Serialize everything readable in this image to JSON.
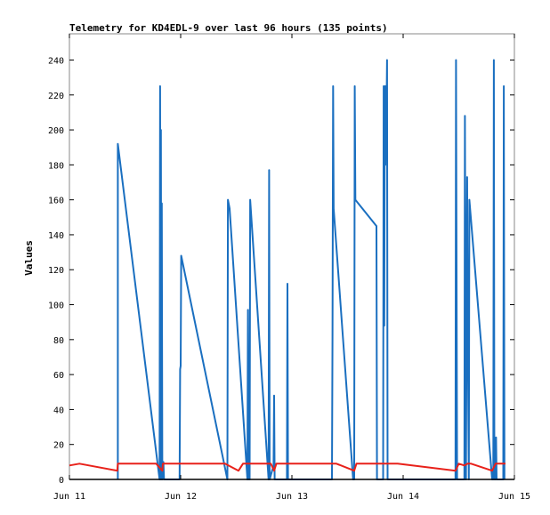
{
  "chart_data": {
    "type": "line",
    "title": "Telemetry for KD4EDL-9 over last 96 hours (135 points)",
    "xlabel": "",
    "ylabel": "Values",
    "ylim": [
      0,
      255
    ],
    "xlim": [
      "Jun 11",
      "Jun 15"
    ],
    "x_ticks": [
      "Jun 11",
      "Jun 12",
      "Jun 13",
      "Jun 14",
      "Jun 15"
    ],
    "y_ticks": [
      0,
      20,
      40,
      60,
      80,
      100,
      120,
      140,
      160,
      180,
      200,
      220,
      240
    ],
    "grid": false,
    "x_unit": "days since Jun 11 00:00",
    "series": [
      {
        "color": "#1a6fc0",
        "points": [
          [
            0.435,
            0
          ],
          [
            0.435,
            192
          ],
          [
            0.81,
            0
          ],
          [
            0.815,
            225
          ],
          [
            0.82,
            0
          ],
          [
            0.822,
            200
          ],
          [
            0.826,
            0
          ],
          [
            0.83,
            158
          ],
          [
            0.835,
            0
          ],
          [
            0.845,
            10
          ],
          [
            0.85,
            0
          ],
          [
            0.99,
            0
          ],
          [
            0.995,
            63
          ],
          [
            1.0,
            65
          ],
          [
            1.005,
            128
          ],
          [
            1.42,
            0
          ],
          [
            1.425,
            160
          ],
          [
            1.44,
            155
          ],
          [
            1.6,
            0
          ],
          [
            1.605,
            97
          ],
          [
            1.61,
            0
          ],
          [
            1.615,
            48
          ],
          [
            1.62,
            0
          ],
          [
            1.625,
            160
          ],
          [
            1.79,
            0
          ],
          [
            1.795,
            177
          ],
          [
            1.8,
            0
          ],
          [
            1.835,
            8
          ],
          [
            1.84,
            48
          ],
          [
            1.845,
            0
          ],
          [
            1.955,
            0
          ],
          [
            1.96,
            112
          ],
          [
            1.965,
            0
          ],
          [
            2.36,
            0
          ],
          [
            2.365,
            80
          ],
          [
            2.37,
            225
          ],
          [
            2.375,
            155
          ],
          [
            2.55,
            0
          ],
          [
            2.56,
            0
          ],
          [
            2.565,
            225
          ],
          [
            2.57,
            160
          ],
          [
            2.76,
            145
          ],
          [
            2.765,
            0
          ],
          [
            2.82,
            0
          ],
          [
            2.825,
            225
          ],
          [
            2.83,
            88
          ],
          [
            2.835,
            225
          ],
          [
            2.84,
            180
          ],
          [
            2.845,
            225
          ],
          [
            2.85,
            210
          ],
          [
            2.855,
            240
          ],
          [
            2.86,
            0
          ],
          [
            3.47,
            0
          ],
          [
            3.475,
            240
          ],
          [
            3.48,
            120
          ],
          [
            3.485,
            0
          ],
          [
            3.55,
            0
          ],
          [
            3.555,
            208
          ],
          [
            3.56,
            104
          ],
          [
            3.565,
            0
          ],
          [
            3.575,
            173
          ],
          [
            3.58,
            95
          ],
          [
            3.59,
            0
          ],
          [
            3.595,
            160
          ],
          [
            3.8,
            0
          ],
          [
            3.81,
            0
          ],
          [
            3.815,
            240
          ],
          [
            3.82,
            0
          ],
          [
            3.83,
            0
          ],
          [
            3.835,
            24
          ],
          [
            3.84,
            0
          ],
          [
            3.9,
            0
          ],
          [
            3.905,
            225
          ],
          [
            3.91,
            0
          ]
        ]
      },
      {
        "color": "#e8211a",
        "points": [
          [
            0.0,
            8
          ],
          [
            0.09,
            9
          ],
          [
            0.43,
            5
          ],
          [
            0.435,
            9
          ],
          [
            0.78,
            9
          ],
          [
            0.835,
            5
          ],
          [
            0.84,
            9
          ],
          [
            1.4,
            9
          ],
          [
            1.52,
            5
          ],
          [
            1.56,
            9
          ],
          [
            1.81,
            9
          ],
          [
            1.84,
            5
          ],
          [
            1.86,
            9
          ],
          [
            2.4,
            9
          ],
          [
            2.56,
            5
          ],
          [
            2.58,
            9
          ],
          [
            2.95,
            9
          ],
          [
            3.47,
            5
          ],
          [
            3.5,
            9
          ],
          [
            3.55,
            8
          ],
          [
            3.58,
            9
          ],
          [
            3.61,
            9
          ],
          [
            3.8,
            5
          ],
          [
            3.83,
            9
          ],
          [
            3.92,
            9
          ]
        ]
      },
      {
        "color": "#000000",
        "points": [
          [
            0.0,
            0
          ],
          [
            4.0,
            0
          ]
        ]
      }
    ]
  }
}
